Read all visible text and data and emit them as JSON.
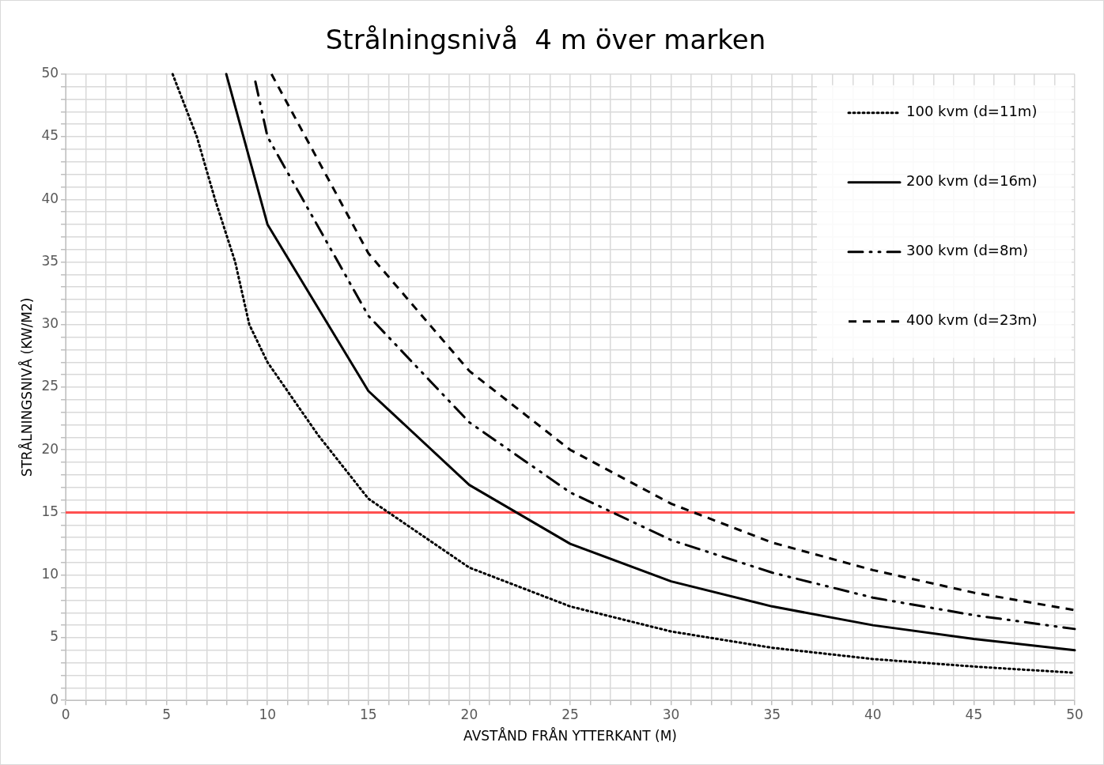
{
  "chart_data": {
    "type": "line",
    "title": "Strålningsnivå  4 m över marken",
    "xlabel": "AVSTÅND FRÅN YTTERKANT (M)",
    "ylabel": "STRÅLNINGSNIVÅ (KW/M2)",
    "xlim": [
      0,
      50
    ],
    "xticks": [
      0,
      {
        "value": 1,
        "label": null
      },
      {
        "value": 2,
        "label": null
      },
      {
        "value": 3,
        "label": null
      },
      {
        "value": 4,
        "label": null
      },
      5,
      {
        "value": 6,
        "label": null
      },
      {
        "value": 7,
        "label": null
      },
      {
        "value": 8,
        "label": null
      },
      {
        "value": 9,
        "label": null
      },
      10,
      {
        "value": 11,
        "label": null
      },
      {
        "value": 12,
        "label": null
      },
      {
        "value": 13,
        "label": null
      },
      {
        "value": 14,
        "label": null
      },
      15,
      {
        "value": 16,
        "label": null
      },
      {
        "value": 17,
        "label": null
      },
      {
        "value": 18,
        "label": null
      },
      {
        "value": 19,
        "label": null
      },
      20,
      {
        "value": 21,
        "label": null
      },
      {
        "value": 22,
        "label": null
      },
      {
        "value": 23,
        "label": null
      },
      {
        "value": 24,
        "label": null
      },
      25,
      {
        "value": 26,
        "label": null
      },
      {
        "value": 27,
        "label": null
      },
      {
        "value": 28,
        "label": null
      },
      {
        "value": 29,
        "label": null
      },
      30,
      {
        "value": 31,
        "label": null
      },
      {
        "value": 32,
        "label": null
      },
      {
        "value": 33,
        "label": null
      },
      {
        "value": 34,
        "label": null
      },
      35,
      {
        "value": 36,
        "label": null
      },
      {
        "value": 37,
        "label": null
      },
      {
        "value": 38,
        "label": null
      },
      {
        "value": 39,
        "label": null
      },
      40,
      {
        "value": 41,
        "label": null
      },
      {
        "value": 42,
        "label": null
      },
      {
        "value": 43,
        "label": null
      },
      {
        "value": 44,
        "label": null
      },
      45,
      {
        "value": 46,
        "label": null
      },
      {
        "value": 47,
        "label": null
      },
      {
        "value": 48,
        "label": null
      },
      {
        "value": 49,
        "label": null
      },
      50
    ],
    "ylim": [
      0,
      50
    ],
    "yticks": [
      0,
      {
        "value": 1,
        "label": null
      },
      {
        "value": 2,
        "label": null
      },
      {
        "value": 3,
        "label": null
      },
      {
        "value": 4,
        "label": null
      },
      5,
      {
        "value": 6,
        "label": null
      },
      {
        "value": 7,
        "label": null
      },
      {
        "value": 8,
        "label": null
      },
      {
        "value": 9,
        "label": null
      },
      10,
      {
        "value": 11,
        "label": null
      },
      {
        "value": 12,
        "label": null
      },
      {
        "value": 13,
        "label": null
      },
      {
        "value": 14,
        "label": null
      },
      15,
      {
        "value": 16,
        "label": null
      },
      {
        "value": 17,
        "label": null
      },
      {
        "value": 18,
        "label": null
      },
      {
        "value": 19,
        "label": null
      },
      20,
      {
        "value": 21,
        "label": null
      },
      {
        "value": 22,
        "label": null
      },
      {
        "value": 23,
        "label": null
      },
      {
        "value": 24,
        "label": null
      },
      25,
      {
        "value": 26,
        "label": null
      },
      {
        "value": 27,
        "label": null
      },
      {
        "value": 28,
        "label": null
      },
      {
        "value": 29,
        "label": null
      },
      30,
      {
        "value": 31,
        "label": null
      },
      {
        "value": 32,
        "label": null
      },
      {
        "value": 33,
        "label": null
      },
      {
        "value": 34,
        "label": null
      },
      35,
      {
        "value": 36,
        "label": null
      },
      {
        "value": 37,
        "label": null
      },
      {
        "value": 38,
        "label": null
      },
      {
        "value": 39,
        "label": null
      },
      40,
      {
        "value": 41,
        "label": null
      },
      {
        "value": 42,
        "label": null
      },
      {
        "value": 43,
        "label": null
      },
      {
        "value": 44,
        "label": null
      },
      45,
      {
        "value": 46,
        "label": null
      },
      {
        "value": 47,
        "label": null
      },
      {
        "value": 48,
        "label": null
      },
      {
        "value": 49,
        "label": null
      },
      50
    ],
    "grid": true,
    "legend": "top right",
    "series": [
      {
        "name": "100 kvm (d=11m)",
        "color": "#000000",
        "line_style": "dotted",
        "x": [
          5.3,
          6.5,
          7.4,
          8.4,
          9.1,
          10,
          12.5,
          15,
          20,
          25,
          30,
          35,
          40,
          45,
          50
        ],
        "values": [
          50,
          45,
          40,
          35,
          30,
          27,
          21.2,
          16.1,
          10.6,
          7.5,
          5.5,
          4.2,
          3.3,
          2.7,
          2.2
        ]
      },
      {
        "name": "200 kvm (d=16m)",
        "color": "#000000",
        "line_style": "solid",
        "x": [
          7.96,
          10,
          15,
          20,
          25,
          30,
          35,
          40,
          45,
          50
        ],
        "values": [
          50,
          38,
          24.7,
          17.2,
          12.5,
          9.5,
          7.5,
          6,
          4.9,
          4
        ]
      },
      {
        "name": "300 kvm (d=8m)",
        "color": "#000000",
        "line_style": "dashdotdot",
        "x": [
          9.4,
          10,
          15,
          20,
          25,
          30,
          35,
          40,
          45,
          50
        ],
        "values": [
          49.4,
          45,
          30.7,
          22.2,
          16.6,
          12.8,
          10.2,
          8.2,
          6.8,
          5.7
        ]
      },
      {
        "name": "400 kvm (d=23m)",
        "color": "#000000",
        "line_style": "dashed",
        "x": [
          10.2,
          15,
          20,
          25,
          30,
          35,
          40,
          45,
          50
        ],
        "values": [
          50,
          35.7,
          26.3,
          20,
          15.7,
          12.6,
          10.4,
          8.6,
          7.2
        ]
      }
    ],
    "ref_lines": [
      {
        "axis": "y",
        "value": 15,
        "color": "#ff5050"
      }
    ]
  }
}
